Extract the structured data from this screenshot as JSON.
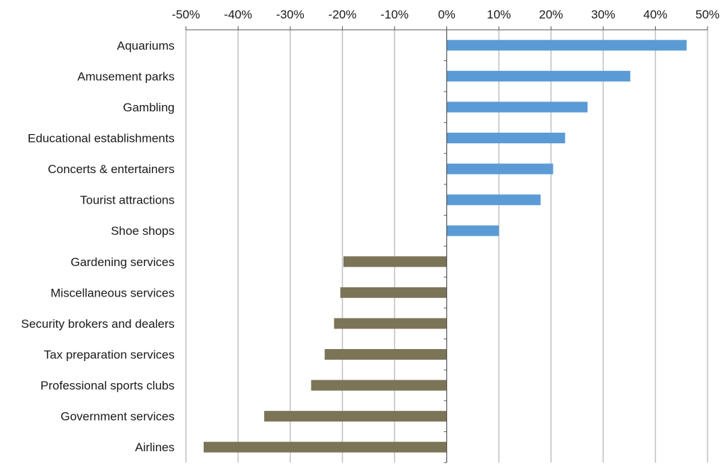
{
  "chart_data": {
    "type": "bar",
    "orientation": "horizontal",
    "title": "",
    "xlabel": "",
    "ylabel": "",
    "xlim": [
      -50,
      50
    ],
    "x_ticks": [
      -50,
      -40,
      -30,
      -20,
      -10,
      0,
      10,
      20,
      30,
      40,
      50
    ],
    "x_tick_labels": [
      "-50%",
      "-40%",
      "-30%",
      "-20%",
      "-10%",
      "0%",
      "10%",
      "20%",
      "30%",
      "40%",
      "50%"
    ],
    "x_axis_position": "top",
    "grid": "vertical",
    "legend": "none",
    "categories": [
      "Aquariums",
      "Amusement parks",
      "Gambling",
      "Educational establishments",
      "Concerts & entertainers",
      "Tourist attractions",
      "Shoe shops",
      "Gardening services",
      "Miscellaneous services",
      "Security brokers and dealers",
      "Tax preparation services",
      "Professional sports clubs",
      "Government services",
      "Airlines"
    ],
    "values": [
      46,
      35.2,
      27,
      22.7,
      20.4,
      18,
      10,
      -19.8,
      -20.4,
      -21.6,
      -23.4,
      -26,
      -35,
      -46.6
    ],
    "colors": {
      "positive": "#5b9bd5",
      "negative": "#7b7456",
      "grid": "#c0c0c0",
      "axis": "#555555",
      "text": "#1a1a1a"
    }
  }
}
